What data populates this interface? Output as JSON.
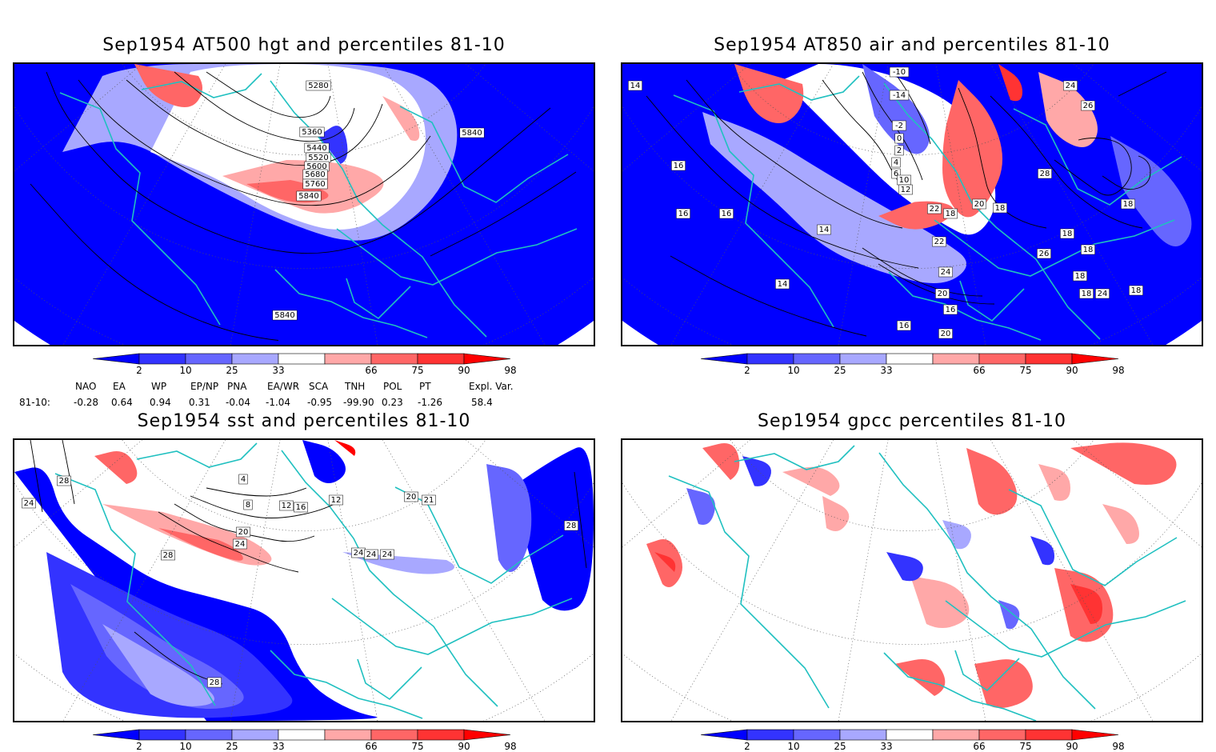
{
  "panels": [
    {
      "id": "p1",
      "title": "Sep1954 AT500 hgt and percentiles 81-10",
      "contour_labels": [
        "5280",
        "5360",
        "5440",
        "5520",
        "5600",
        "5680",
        "5760",
        "5840",
        "5840",
        "5840"
      ]
    },
    {
      "id": "p2",
      "title": "Sep1954 AT850 air and percentiles 81-10",
      "contour_labels": [
        "-10",
        "-14",
        "-2",
        "0",
        "2",
        "4",
        "6",
        "10",
        "12",
        "14",
        "14",
        "14",
        "16",
        "16",
        "16",
        "16",
        "18",
        "18",
        "18",
        "18",
        "18",
        "18",
        "18",
        "20",
        "20",
        "22",
        "22",
        "24",
        "24",
        "24",
        "26",
        "26",
        "28",
        "18",
        "16",
        "20"
      ]
    },
    {
      "id": "p3",
      "title": "Sep1954 sst and percentiles 81-10",
      "contour_labels": [
        "28",
        "24",
        "24",
        "28",
        "4",
        "8",
        "12",
        "16",
        "20",
        "24",
        "24",
        "24",
        "28",
        "20",
        "21",
        "12",
        "28"
      ]
    },
    {
      "id": "p4",
      "title": "Sep1954 gpcc percentiles 81-10",
      "contour_labels": []
    }
  ],
  "colorbar": {
    "ticks": [
      "2",
      "10",
      "25",
      "33",
      "66",
      "75",
      "90",
      "98"
    ],
    "colors": [
      "#0000ff",
      "#3333ff",
      "#6666ff",
      "#a8a8ff",
      "#ffffff",
      "#ffa8a8",
      "#ff6666",
      "#ff3333",
      "#ff0000"
    ]
  },
  "indices": {
    "row_label": "81-10:",
    "headers": [
      "NAO",
      "EA",
      "WP",
      "EP/NP",
      "PNA",
      "EA/WR",
      "SCA",
      "TNH",
      "POL",
      "PT",
      "Expl. Var."
    ],
    "values": [
      "-0.28",
      "0.64",
      "0.94",
      "0.31",
      "-0.04",
      "-1.04",
      "-0.95",
      "-99.90",
      "0.23",
      "-1.26",
      "58.4"
    ]
  },
  "colors": {
    "coast": "#20c0c0",
    "grid": "#555555",
    "contour": "#000000"
  }
}
